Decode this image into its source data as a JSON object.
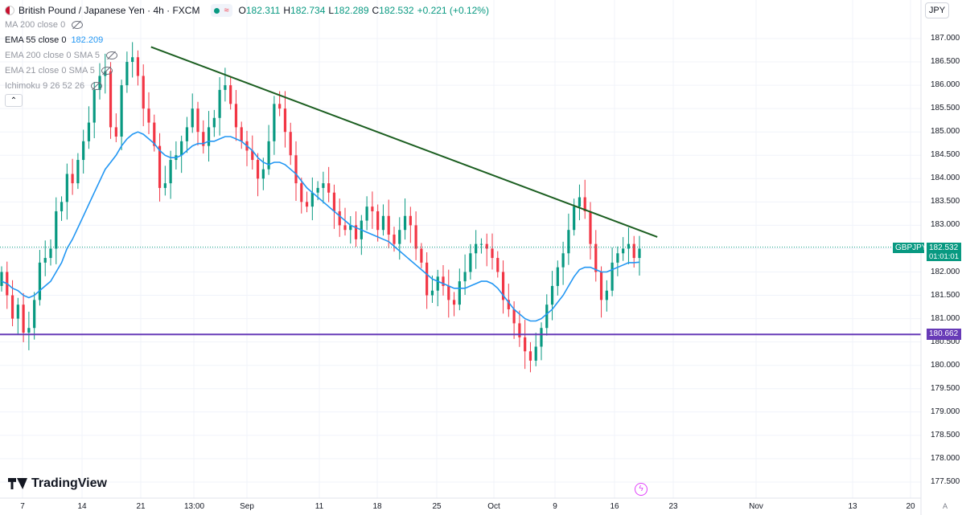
{
  "header": {
    "ticker": "British Pound / Japanese Yen · 4h · FXCM",
    "ohlc": [
      {
        "k": "O",
        "v": "182.311"
      },
      {
        "k": "H",
        "v": "182.734"
      },
      {
        "k": "L",
        "v": "182.289"
      },
      {
        "k": "C",
        "v": "182.532"
      },
      {
        "k": "",
        "v": "+0.221 (+0.12%)"
      }
    ]
  },
  "indicators": [
    {
      "label": "MA 200 close 0",
      "value": "",
      "hidden": true
    },
    {
      "label": "EMA 55 close 0",
      "value": "182.209",
      "hidden": false
    },
    {
      "label": "EMA 200 close 0 SMA 5",
      "value": "",
      "hidden": true
    },
    {
      "label": "EMA 21 close 0 SMA 5",
      "value": "",
      "hidden": true
    },
    {
      "label": "Ichimoku 9 26 52 26",
      "value": "",
      "hidden": true
    }
  ],
  "collapse_icon": "chevron-up-icon",
  "currency": "JPY",
  "colors": {
    "up": "#089981",
    "down": "#f23645",
    "ema": "#2196f3",
    "trendline": "#1b5e20",
    "support": "#673ab7",
    "grid": "#f0f3fa",
    "price_line": "#089981"
  },
  "tags": {
    "symbol": "GBPJPY",
    "price": "182.532",
    "countdown": "01:01:01",
    "support": "180.662"
  },
  "branding": "TradingView",
  "auto_label": "A",
  "chart_data": {
    "type": "candlestick",
    "symbol": "GBPJPY",
    "interval": "4h",
    "ylim": [
      177.3,
      187.2
    ],
    "y_ticks": [
      "187.000",
      "186.500",
      "186.000",
      "185.500",
      "185.000",
      "184.500",
      "184.000",
      "183.500",
      "183.000",
      "182.500",
      "182.000",
      "181.500",
      "181.000",
      "180.500",
      "180.000",
      "179.500",
      "179.000",
      "178.500",
      "178.000",
      "177.500"
    ],
    "x_ticks": [
      "7",
      "14",
      "21",
      "13:00",
      "Sep",
      "11",
      "18",
      "25",
      "Oct",
      "9",
      "16",
      "23",
      "Nov",
      "13",
      "20"
    ],
    "last_price": 182.532,
    "support_level": 180.662,
    "trendline": [
      {
        "t": 0.157,
        "p": 186.82
      },
      {
        "t": 0.684,
        "p": 182.75
      }
    ],
    "closes": [
      182.0,
      181.5,
      181.0,
      181.3,
      180.7,
      180.8,
      181.4,
      182.2,
      182.3,
      182.5,
      183.3,
      183.5,
      184.1,
      183.9,
      184.4,
      184.8,
      185.2,
      185.9,
      186.2,
      186.3,
      185.1,
      184.9,
      186.0,
      186.5,
      186.6,
      186.2,
      185.5,
      185.2,
      184.7,
      183.8,
      183.9,
      184.4,
      184.5,
      184.8,
      185.1,
      185.5,
      185.0,
      184.7,
      185.1,
      185.3,
      185.9,
      186.0,
      185.6,
      185.1,
      184.8,
      184.6,
      184.4,
      184.0,
      184.2,
      184.8,
      185.6,
      185.5,
      185.0,
      184.5,
      183.9,
      183.5,
      183.4,
      183.7,
      183.8,
      183.9,
      183.7,
      183.3,
      183.0,
      182.9,
      183.0,
      182.7,
      183.1,
      183.4,
      183.3,
      182.9,
      183.2,
      182.8,
      182.6,
      182.9,
      183.2,
      183.0,
      182.5,
      182.2,
      181.5,
      181.6,
      181.9,
      181.7,
      181.4,
      181.3,
      181.8,
      182.0,
      182.4,
      182.6,
      182.6,
      182.5,
      182.3,
      182.0,
      181.4,
      181.2,
      180.9,
      180.6,
      180.3,
      180.1,
      180.4,
      180.8,
      181.3,
      181.7,
      182.1,
      182.4,
      182.9,
      183.4,
      183.6,
      183.3,
      182.6,
      182.0,
      181.4,
      181.6,
      182.2,
      182.4,
      182.5,
      182.6,
      182.3,
      182.5
    ],
    "ema_values": [
      181.8,
      181.75,
      181.65,
      181.6,
      181.5,
      181.45,
      181.5,
      181.6,
      181.7,
      181.8,
      182.0,
      182.2,
      182.5,
      182.7,
      182.95,
      183.2,
      183.45,
      183.7,
      183.95,
      184.2,
      184.35,
      184.5,
      184.7,
      184.85,
      184.95,
      185.0,
      184.95,
      184.85,
      184.75,
      184.6,
      184.5,
      184.45,
      184.45,
      184.5,
      184.6,
      184.7,
      184.75,
      184.75,
      184.8,
      184.8,
      184.85,
      184.9,
      184.9,
      184.85,
      184.8,
      184.7,
      184.6,
      184.45,
      184.35,
      184.3,
      184.35,
      184.35,
      184.3,
      184.2,
      184.1,
      183.95,
      183.8,
      183.7,
      183.6,
      183.5,
      183.4,
      183.3,
      183.2,
      183.1,
      183.0,
      182.95,
      182.9,
      182.85,
      182.8,
      182.75,
      182.7,
      182.65,
      182.55,
      182.45,
      182.35,
      182.25,
      182.15,
      182.05,
      181.95,
      181.85,
      181.8,
      181.75,
      181.7,
      181.65,
      181.65,
      181.65,
      181.7,
      181.75,
      181.8,
      181.8,
      181.75,
      181.65,
      181.5,
      181.35,
      181.2,
      181.1,
      181.0,
      180.95,
      180.95,
      181.0,
      181.1,
      181.2,
      181.35,
      181.5,
      181.7,
      181.9,
      182.05,
      182.1,
      182.1,
      182.05,
      182.0,
      182.0,
      182.05,
      182.1,
      182.15,
      182.2,
      182.2,
      182.21
    ]
  }
}
